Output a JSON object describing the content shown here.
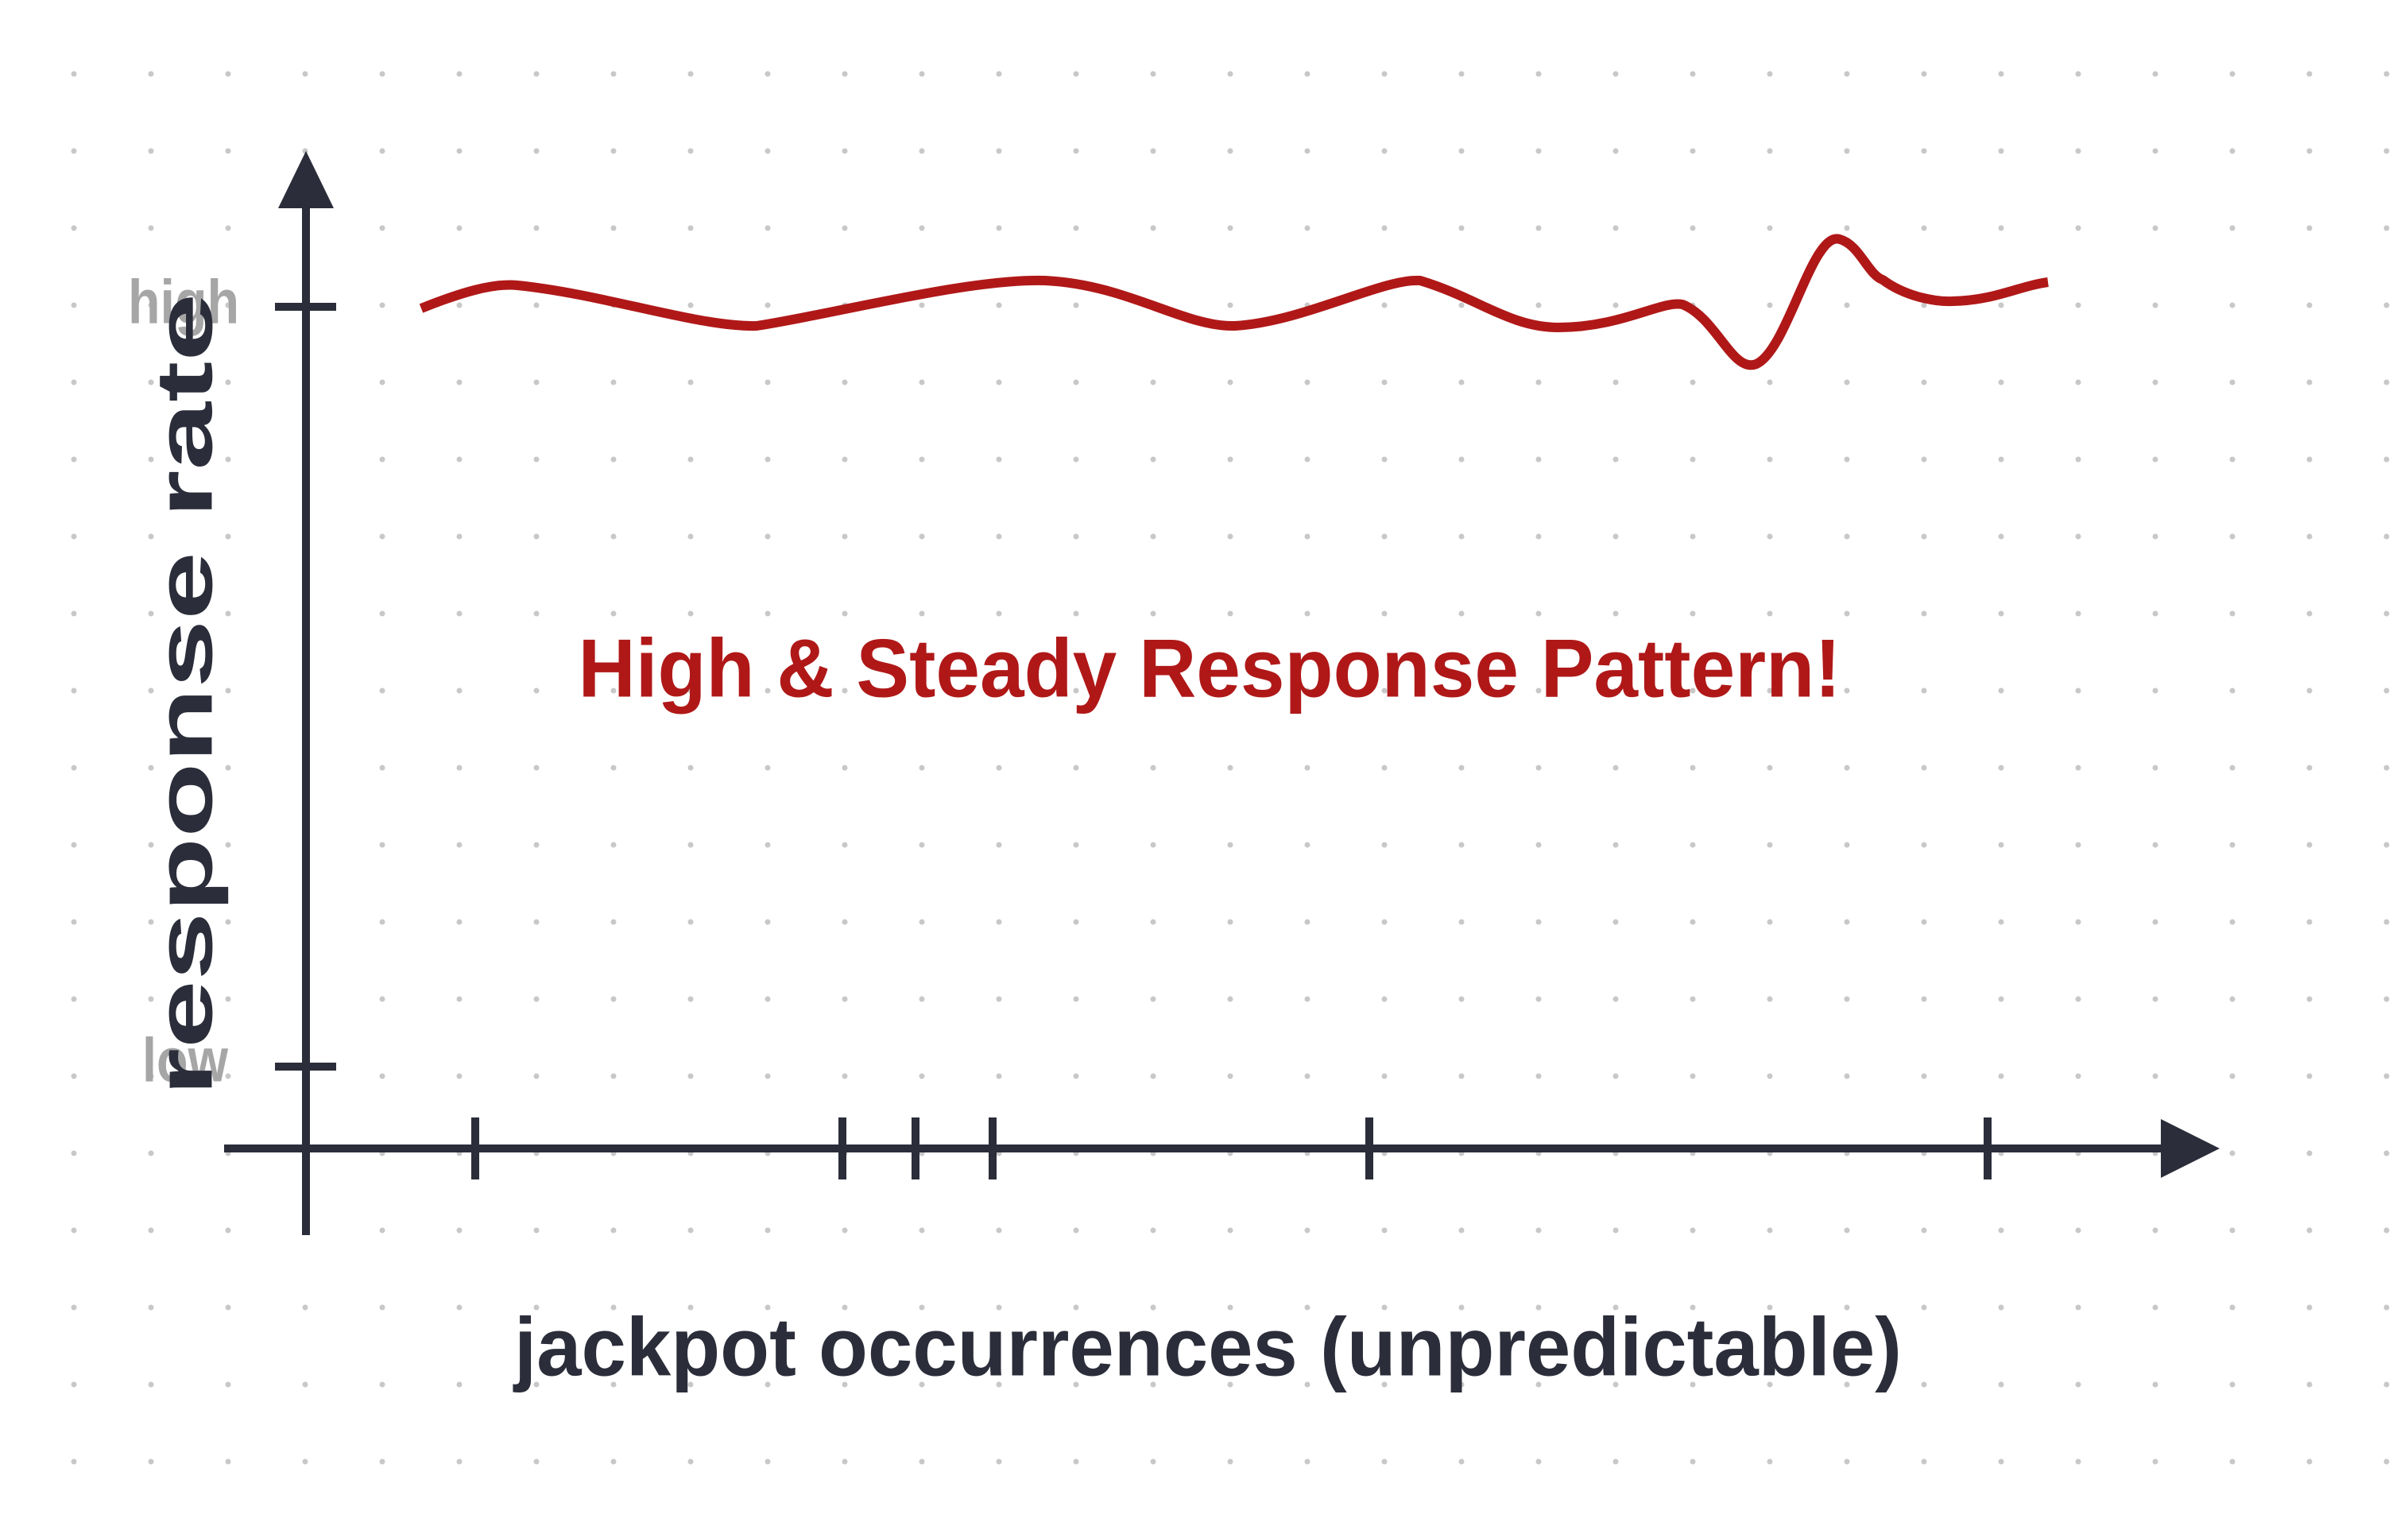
{
  "title": "High & Steady Response Pattern!",
  "y_axis": {
    "label": "response rate",
    "ticks": [
      "high",
      "low"
    ]
  },
  "x_axis": {
    "label": "jackpot occurrences (unpredictable)"
  }
}
